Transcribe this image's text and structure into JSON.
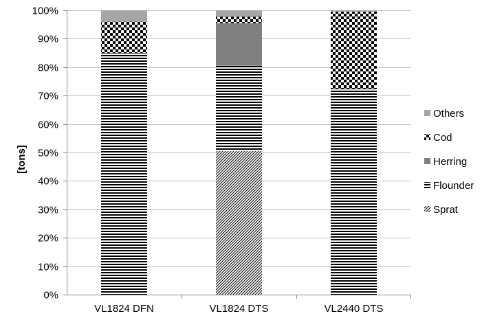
{
  "chart_data": {
    "type": "bar",
    "stacked": true,
    "percent": true,
    "title": "",
    "xlabel": "",
    "ylabel": "[tons]",
    "ylim": [
      0,
      100
    ],
    "yticks": [
      "0%",
      "10%",
      "20%",
      "30%",
      "40%",
      "50%",
      "60%",
      "70%",
      "80%",
      "90%",
      "100%"
    ],
    "grid": true,
    "legend_position": "right",
    "categories": [
      "VL1824 DFN",
      "VL1824 DTS",
      "VL2440 DTS"
    ],
    "series": [
      {
        "name": "Sprat",
        "pattern": "diagonal-hatch",
        "values": [
          0,
          50.5,
          0
        ]
      },
      {
        "name": "Flounder",
        "pattern": "horizontal-stripes",
        "values": [
          85,
          30,
          72.5
        ]
      },
      {
        "name": "Herring",
        "pattern": "solid-dark-gray",
        "color": "#808080",
        "values": [
          0,
          15,
          0
        ]
      },
      {
        "name": "Cod",
        "pattern": "checkerboard",
        "values": [
          11,
          2.5,
          27
        ]
      },
      {
        "name": "Others",
        "pattern": "solid-light-gray",
        "color": "#a6a6a6",
        "values": [
          4,
          2,
          0.5
        ]
      }
    ]
  }
}
